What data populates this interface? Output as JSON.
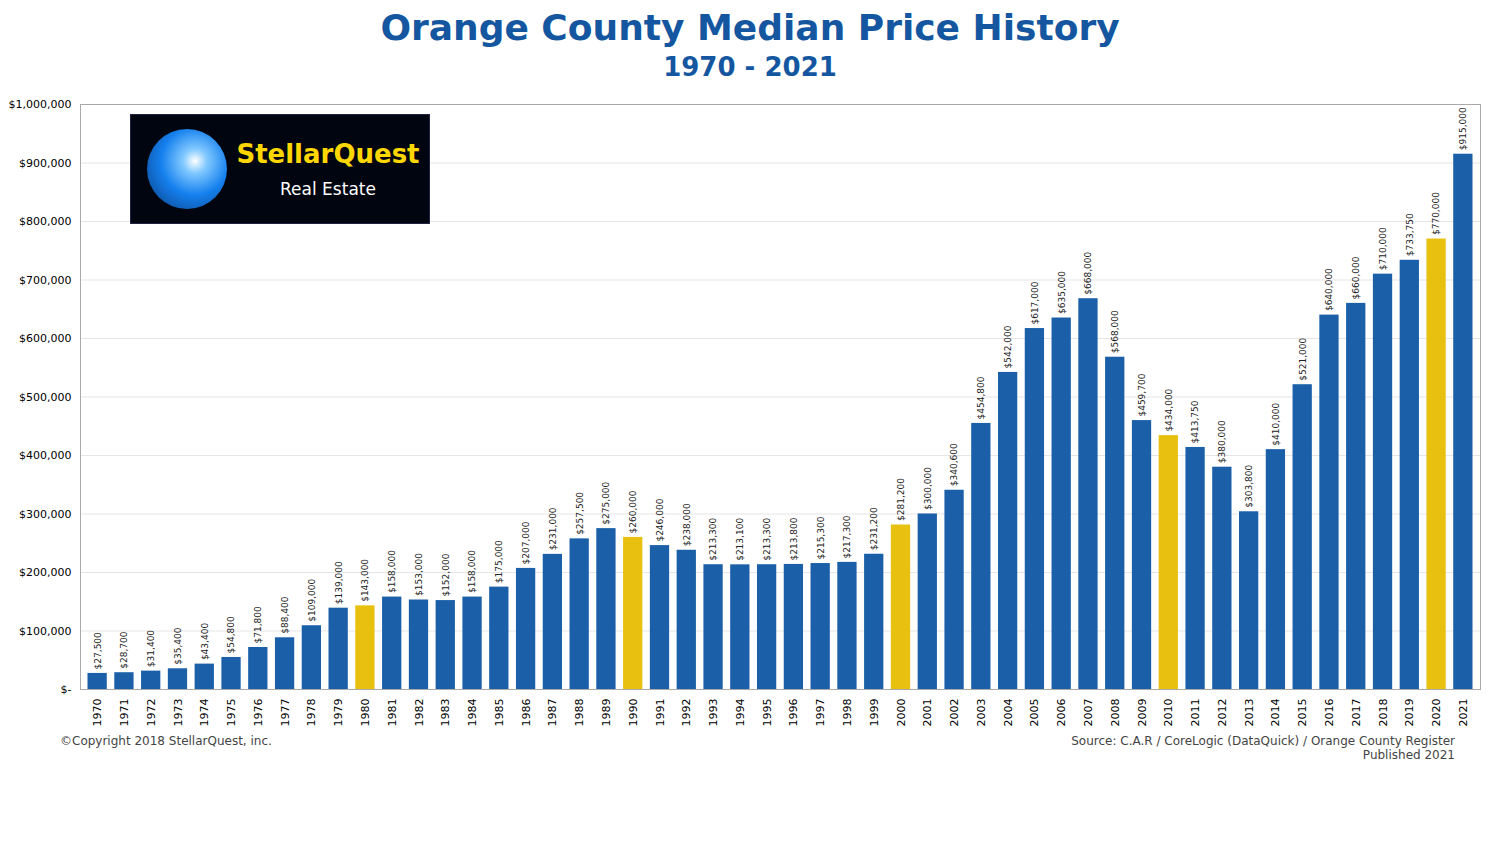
{
  "chart_data": {
    "type": "bar",
    "title": "Orange County Median Price History",
    "subtitle": "1970 - 2021",
    "categories": [
      "1970",
      "1971",
      "1972",
      "1973",
      "1974",
      "1975",
      "1976",
      "1977",
      "1978",
      "1979",
      "1980",
      "1981",
      "1982",
      "1983",
      "1984",
      "1985",
      "1986",
      "1987",
      "1988",
      "1989",
      "1990",
      "1991",
      "1992",
      "1993",
      "1994",
      "1995",
      "1996",
      "1997",
      "1998",
      "1999",
      "2000",
      "2001",
      "2002",
      "2003",
      "2004",
      "2005",
      "2006",
      "2007",
      "2008",
      "2009",
      "2010",
      "2011",
      "2012",
      "2013",
      "2014",
      "2015",
      "2016",
      "2017",
      "2018",
      "2019",
      "2020",
      "2021"
    ],
    "values": [
      27500,
      28700,
      31400,
      35400,
      43400,
      54800,
      71800,
      88400,
      109000,
      139000,
      143000,
      158000,
      153000,
      152000,
      158000,
      175000,
      207000,
      231000,
      257500,
      275000,
      260000,
      246000,
      238000,
      213300,
      213100,
      213300,
      213800,
      215300,
      217300,
      231200,
      281200,
      300000,
      340600,
      454800,
      542000,
      617000,
      635000,
      668000,
      568000,
      459700,
      434000,
      413750,
      380000,
      303800,
      410000,
      521000,
      640000,
      660000,
      710000,
      733750,
      770000,
      915000
    ],
    "value_labels": [
      "$27,500",
      "$28,700",
      "$31,400",
      "$35,400",
      "$43,400",
      "$54,800",
      "$71,800",
      "$88,400",
      "$109,000",
      "$139,000",
      "$143,000",
      "$158,000",
      "$153,000",
      "$152,000",
      "$158,000",
      "$175,000",
      "$207,000",
      "$231,000",
      "$257,500",
      "$275,000",
      "$260,000",
      "$246,000",
      "$238,000",
      "$213,300",
      "$213,100",
      "$213,300",
      "$213,800",
      "$215,300",
      "$217,300",
      "$231,200",
      "$281,200",
      "$300,000",
      "$340,600",
      "$454,800",
      "$542,000",
      "$617,000",
      "$635,000",
      "$668,000",
      "$568,000",
      "$459,700",
      "$434,000",
      "$413,750",
      "$380,000",
      "$303,800",
      "$410,000",
      "$521,000",
      "$640,000",
      "$660,000",
      "$710,000",
      "$733,750",
      "$770,000",
      "$915,000"
    ],
    "colors": [
      "#1a5fa8",
      "#1a5fa8",
      "#1a5fa8",
      "#1a5fa8",
      "#1a5fa8",
      "#1a5fa8",
      "#1a5fa8",
      "#1a5fa8",
      "#1a5fa8",
      "#1a5fa8",
      "#e8c010",
      "#1a5fa8",
      "#1a5fa8",
      "#1a5fa8",
      "#1a5fa8",
      "#1a5fa8",
      "#1a5fa8",
      "#1a5fa8",
      "#1a5fa8",
      "#1a5fa8",
      "#e8c010",
      "#1a5fa8",
      "#1a5fa8",
      "#1a5fa8",
      "#1a5fa8",
      "#1a5fa8",
      "#1a5fa8",
      "#1a5fa8",
      "#1a5fa8",
      "#1a5fa8",
      "#e8c010",
      "#1a5fa8",
      "#1a5fa8",
      "#1a5fa8",
      "#1a5fa8",
      "#1a5fa8",
      "#1a5fa8",
      "#1a5fa8",
      "#1a5fa8",
      "#1a5fa8",
      "#e8c010",
      "#1a5fa8",
      "#1a5fa8",
      "#1a5fa8",
      "#1a5fa8",
      "#1a5fa8",
      "#1a5fa8",
      "#1a5fa8",
      "#1a5fa8",
      "#1a5fa8",
      "#e8c010",
      "#1a5fa8"
    ],
    "ylim": [
      0,
      1000000
    ],
    "yticks": [
      {
        "value": 0,
        "label": "$-"
      },
      {
        "value": 100000,
        "label": "$100,000"
      },
      {
        "value": 200000,
        "label": "$200,000"
      },
      {
        "value": 300000,
        "label": "$300,000"
      },
      {
        "value": 400000,
        "label": "$400,000"
      },
      {
        "value": 500000,
        "label": "$500,000"
      },
      {
        "value": 600000,
        "label": "$600,000"
      },
      {
        "value": 700000,
        "label": "$700,000"
      },
      {
        "value": 800000,
        "label": "$800,000"
      },
      {
        "value": 900000,
        "label": "$900,000"
      },
      {
        "value": 1000000,
        "label": "$1,000,000"
      }
    ],
    "grid": true,
    "data_labels": true,
    "annotations": [
      "©Copyright 2018 StellarQuest, inc.",
      "Source: C.A.R / CoreLogic (DataQuick) / Orange County Register\nPublished 2021",
      "StellarQuest",
      "Real Estate"
    ]
  }
}
